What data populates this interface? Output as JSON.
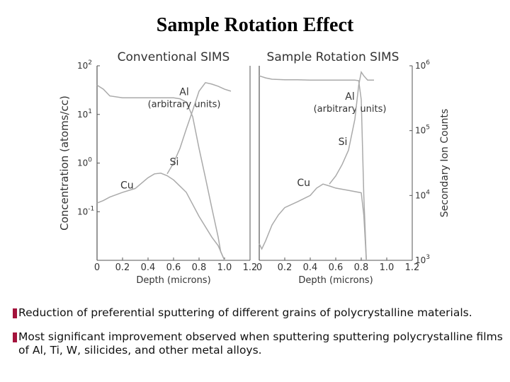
{
  "title": "Sample Rotation Effect",
  "chart_data": [
    {
      "type": "line",
      "title": "Conventional SIMS",
      "xlabel": "Depth (microns)",
      "ylabel": "Concentration (atoms/cc)",
      "y_scale": "log",
      "xlim": [
        0,
        1.2
      ],
      "ylim_exponent": [
        -2,
        2
      ],
      "x_ticks": [
        "0",
        "0.2",
        "0.4",
        "0.6",
        "0.8",
        "1.0",
        "1.2"
      ],
      "y_ticks": [
        {
          "base": "10",
          "exp": "2",
          "value": 100
        },
        {
          "base": "10",
          "exp": "1",
          "value": 10
        },
        {
          "base": "10",
          "exp": "0",
          "value": 1
        },
        {
          "base": "10",
          "exp": "-1",
          "value": 0.1
        }
      ],
      "series": [
        {
          "name": "Al",
          "unit_label": "(arbitrary units)",
          "x": [
            0.0,
            0.05,
            0.1,
            0.2,
            0.3,
            0.4,
            0.5,
            0.6,
            0.65,
            0.7,
            0.75,
            0.8,
            0.85,
            0.9,
            0.95,
            0.97,
            1.0
          ],
          "y": [
            40,
            33,
            24,
            22,
            22,
            22,
            22,
            22,
            21,
            18,
            9,
            2,
            0.5,
            0.12,
            0.03,
            0.015,
            0.01
          ]
        },
        {
          "name": "Si",
          "x": [
            0.55,
            0.6,
            0.65,
            0.7,
            0.75,
            0.8,
            0.85,
            0.9,
            0.95,
            1.0,
            1.05
          ],
          "y": [
            0.6,
            1.0,
            2.0,
            5.0,
            12,
            30,
            45,
            42,
            38,
            33,
            30
          ]
        },
        {
          "name": "Cu",
          "x": [
            0.0,
            0.05,
            0.1,
            0.2,
            0.3,
            0.4,
            0.45,
            0.5,
            0.55,
            0.6,
            0.7,
            0.8,
            0.9,
            0.95,
            1.0
          ],
          "y": [
            0.15,
            0.17,
            0.2,
            0.25,
            0.3,
            0.5,
            0.6,
            0.62,
            0.55,
            0.45,
            0.25,
            0.08,
            0.03,
            0.02,
            0.01
          ]
        }
      ]
    },
    {
      "type": "line",
      "title": "Sample Rotation SIMS",
      "xlabel": "Depth (microns)",
      "ylabel": "Secondary Ion Counts",
      "y_scale": "log",
      "xlim": [
        0,
        1.2
      ],
      "x_ticks": [
        "0",
        "0.2",
        "0.4",
        "0.6",
        "0.8",
        "1.0",
        "1.2"
      ],
      "y_ticks": [
        {
          "base": "10",
          "exp": "6",
          "value": 1000000
        },
        {
          "base": "10",
          "exp": "5",
          "value": 100000
        },
        {
          "base": "10",
          "exp": "4",
          "value": 10000
        },
        {
          "base": "10",
          "exp": "3",
          "value": 1000
        }
      ],
      "series": [
        {
          "name": "Al",
          "unit_label": "(arbitrary units)",
          "x": [
            0.0,
            0.05,
            0.1,
            0.2,
            0.3,
            0.4,
            0.5,
            0.6,
            0.7,
            0.75,
            0.78,
            0.8,
            0.82,
            0.84
          ],
          "y": [
            700000,
            650000,
            620000,
            610000,
            610000,
            600000,
            600000,
            600000,
            600000,
            600000,
            590000,
            300000,
            10000,
            1000
          ]
        },
        {
          "name": "Si",
          "x": [
            0.55,
            0.6,
            0.65,
            0.7,
            0.75,
            0.78,
            0.8,
            0.82,
            0.85,
            0.9
          ],
          "y": [
            15000,
            20000,
            30000,
            50000,
            150000,
            500000,
            800000,
            700000,
            600000,
            600000
          ]
        },
        {
          "name": "Cu",
          "x": [
            0.0,
            0.02,
            0.05,
            0.1,
            0.15,
            0.2,
            0.3,
            0.4,
            0.45,
            0.5,
            0.55,
            0.6,
            0.7,
            0.8,
            0.82,
            0.84
          ],
          "y": [
            1800,
            1500,
            2000,
            3500,
            5000,
            6500,
            8000,
            10000,
            13000,
            15000,
            14000,
            13000,
            12000,
            11000,
            5000,
            1000
          ]
        }
      ]
    }
  ],
  "bullets": [
    "Reduction of preferential sputtering of different grains of polycrystalline materials.",
    "Most significant improvement observed when sputtering sputtering polycrystalline films of Al, Ti, W, silicides, and other metal alloys."
  ],
  "colors": {
    "line": "#aaaaaa",
    "axis": "#555555",
    "bullet": "#a4133c"
  }
}
